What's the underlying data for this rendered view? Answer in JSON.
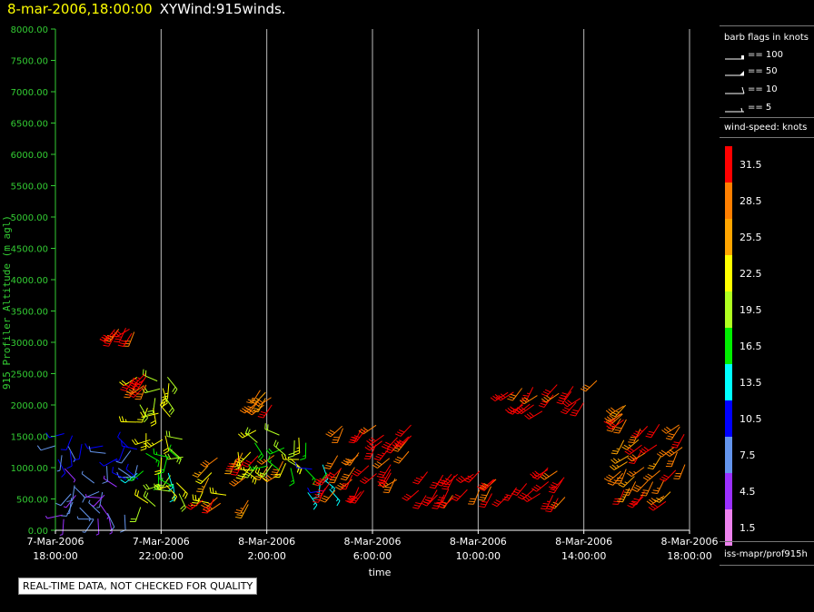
{
  "header": {
    "date": "8-mar-2006,18:00:00",
    "title": "XYWind:915winds."
  },
  "chart_data": {
    "type": "scatter",
    "subtype": "wind-barb time-height",
    "title": "XYWind:915winds.",
    "xlabel": "time",
    "ylabel": "915 Profiler Altitude (m agl)",
    "ylim": [
      0,
      8000
    ],
    "y_ticks": [
      "0.00",
      "500.00",
      "1000.00",
      "1500.00",
      "2000.00",
      "2500.00",
      "3000.00",
      "3500.00",
      "4000.00",
      "4500.00",
      "5000.00",
      "5500.00",
      "6000.00",
      "6500.00",
      "7000.00",
      "7500.00",
      "8000.00"
    ],
    "x_range_hours": [
      0,
      24
    ],
    "x_ticks": [
      {
        "hour": 0,
        "date": "7-Mar-2006",
        "time": "18:00:00"
      },
      {
        "hour": 4,
        "date": "7-Mar-2006",
        "time": "22:00:00"
      },
      {
        "hour": 8,
        "date": "8-Mar-2006",
        "time": "2:00:00"
      },
      {
        "hour": 12,
        "date": "8-Mar-2006",
        "time": "6:00:00"
      },
      {
        "hour": 16,
        "date": "8-Mar-2006",
        "time": "10:00:00"
      },
      {
        "hour": 20,
        "date": "8-Mar-2006",
        "time": "14:00:00"
      },
      {
        "hour": 24,
        "date": "8-Mar-2006",
        "time": "18:00:00"
      }
    ],
    "grid": "vertical lines at each time tick",
    "clusters": [
      {
        "hours": [
          0.0,
          1.0
        ],
        "alt": [
          1100,
          1800
        ],
        "speed": [
          6,
          12
        ]
      },
      {
        "hours": [
          0.2,
          3.0
        ],
        "alt": [
          150,
          1000
        ],
        "speed": [
          3,
          9
        ]
      },
      {
        "hours": [
          1.3,
          3.2
        ],
        "alt": [
          800,
          1350
        ],
        "speed": [
          8,
          13
        ]
      },
      {
        "hours": [
          3.1,
          5.0
        ],
        "alt": [
          300,
          1500
        ],
        "speed": [
          14,
          23
        ]
      },
      {
        "hours": [
          3.0,
          4.4
        ],
        "alt": [
          1500,
          2500
        ],
        "speed": [
          18,
          24
        ]
      },
      {
        "hours": [
          2.9,
          3.6
        ],
        "alt": [
          2250,
          2550
        ],
        "speed": [
          28,
          33
        ]
      },
      {
        "hours": [
          2.1,
          3.0
        ],
        "alt": [
          3050,
          3250
        ],
        "speed": [
          28,
          33
        ]
      },
      {
        "hours": [
          5.5,
          8.7
        ],
        "alt": [
          400,
          1250
        ],
        "speed": [
          20,
          32
        ]
      },
      {
        "hours": [
          7.5,
          9.5
        ],
        "alt": [
          800,
          1600
        ],
        "speed": [
          16,
          24
        ]
      },
      {
        "hours": [
          7.6,
          8.2
        ],
        "alt": [
          1950,
          2250
        ],
        "speed": [
          26,
          33
        ]
      },
      {
        "hours": [
          9.5,
          10.4
        ],
        "alt": [
          550,
          1100
        ],
        "speed": [
          10,
          16
        ]
      },
      {
        "hours": [
          10.2,
          13.5
        ],
        "alt": [
          600,
          1700
        ],
        "speed": [
          29,
          33
        ]
      },
      {
        "hours": [
          13.5,
          20.0
        ],
        "alt": [
          500,
          1000
        ],
        "speed": [
          29,
          33
        ]
      },
      {
        "hours": [
          17.0,
          20.5
        ],
        "alt": [
          1900,
          2400
        ],
        "speed": [
          29,
          33
        ]
      },
      {
        "hours": [
          21.3,
          22.0
        ],
        "alt": [
          1750,
          2000
        ],
        "speed": [
          26,
          31
        ]
      },
      {
        "hours": [
          21.2,
          23.9
        ],
        "alt": [
          450,
          1700
        ],
        "speed": [
          24,
          33
        ]
      }
    ]
  },
  "legend": {
    "barb_title": "barb flags in knots",
    "barbs": [
      {
        "label": "== 100",
        "value": 100
      },
      {
        "label": "== 50",
        "value": 50
      },
      {
        "label": "== 10",
        "value": 10
      },
      {
        "label": "== 5",
        "value": 5
      }
    ],
    "speed_title": "wind-speed: knots",
    "bands": [
      {
        "label": "31.5",
        "color": "#ff0000"
      },
      {
        "label": "28.5",
        "color": "#ff7f00"
      },
      {
        "label": "25.5",
        "color": "#ffa500"
      },
      {
        "label": "22.5",
        "color": "#ffff00"
      },
      {
        "label": "19.5",
        "color": "#b0ff20"
      },
      {
        "label": "16.5",
        "color": "#00ee00"
      },
      {
        "label": "13.5",
        "color": "#00ffff"
      },
      {
        "label": "10.5",
        "color": "#0000ff"
      },
      {
        "label": "7.5",
        "color": "#6495ed"
      },
      {
        "label": "4.5",
        "color": "#9b30ff"
      },
      {
        "label": "1.5",
        "color": "#ee82ee"
      }
    ],
    "source": "iss-mapr/prof915h"
  },
  "qc_note": "REAL-TIME DATA, NOT CHECKED FOR QUALITY",
  "colors": {
    "axis": "#33cc33",
    "text": "#ffffff",
    "header_date": "#ffff00",
    "grid": "#bbbbbb"
  }
}
